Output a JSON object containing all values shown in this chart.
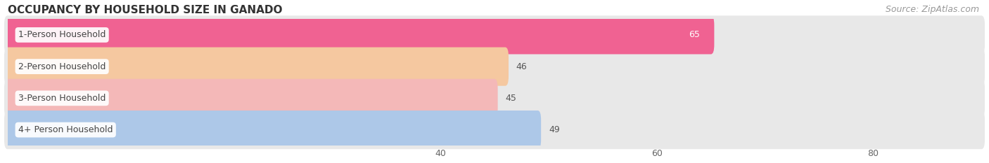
{
  "title": "OCCUPANCY BY HOUSEHOLD SIZE IN GANADO",
  "categories": [
    "1-Person Household",
    "2-Person Household",
    "3-Person Household",
    "4+ Person Household"
  ],
  "values": [
    65,
    46,
    45,
    49
  ],
  "bar_colors": [
    "#f06292",
    "#f5c8a0",
    "#f4b8b8",
    "#adc8e8"
  ],
  "xlim": [
    0,
    90
  ],
  "xmin": 0,
  "xticks": [
    40,
    60,
    80
  ],
  "source_text": "Source: ZipAtlas.com",
  "title_fontsize": 11,
  "label_fontsize": 9,
  "value_fontsize": 9,
  "source_fontsize": 9,
  "background_color": "#ffffff",
  "bar_height": 0.62,
  "row_bg_colors": [
    "#f5f5f5",
    "#ffffff",
    "#f5f5f5",
    "#ffffff"
  ],
  "bar_bg_color": "#e8e8e8",
  "grid_color": "#d0d0d0"
}
